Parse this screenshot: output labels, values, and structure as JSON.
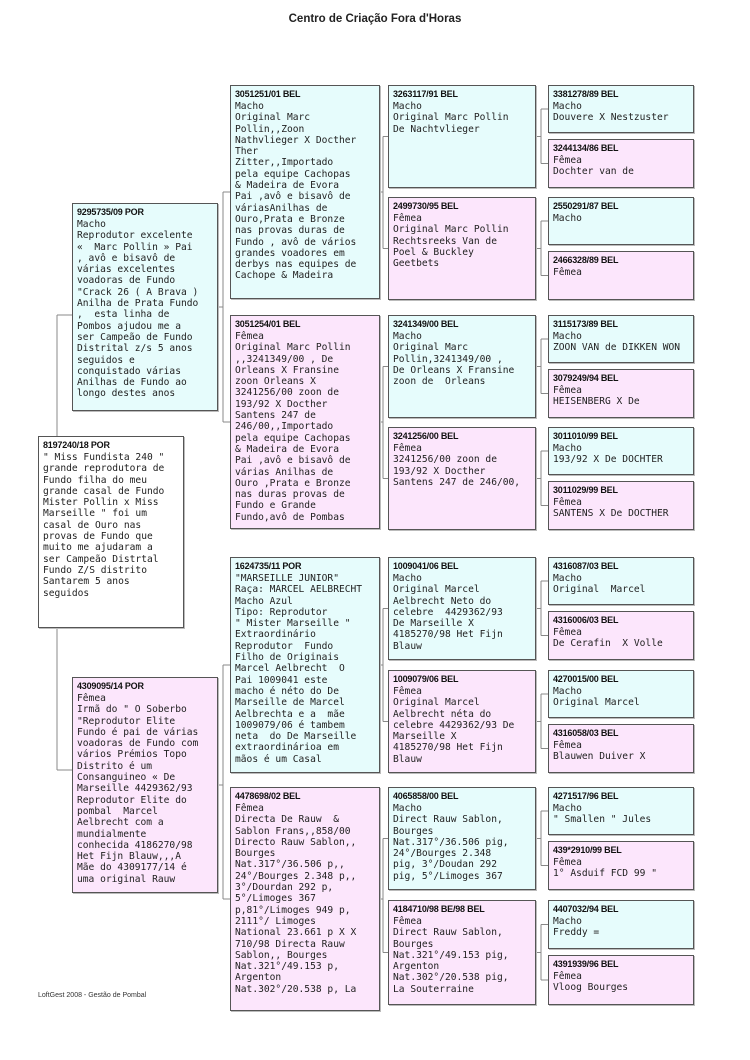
{
  "title": "Centro de Criação Fora d'Horas",
  "footer": "LoftGest 2008 - Gestão de Pombal",
  "colors": {
    "male": "#e6fcfc",
    "female": "#fce6fc",
    "border": "#555555"
  },
  "birds": [
    {
      "ring": "8197240/18 POR",
      "sex": "root",
      "text": "\" Miss Fundista 240 \"\ngrande reprodutora de\nFundo filha do meu\ngrande casal de Fundo\nMister Pollin x Miss\nMarseille \" foi um\ncasal de Ouro nas\nprovas de Fundo que\nmuito me ajudaram a\nser Campeão Distrtal\nFundo Z/S distrito\nSantarem 5 anos\nseguidos"
    },
    {
      "ring": "9295735/09 POR",
      "sex": "m",
      "text": "Macho\nReprodutor excelente\n«  Marc Pollin » Pai\n, avô e bisavô de\nvárias excelentes\nvoadoras de Fundo\n\"Crack 26 ( A Brava )\nAnilha de Prata Fundo\n,  esta linha de\nPombos ajudou me a\nser Campeão de Fundo\nDistrital z/s 5 anos\nseguidos e\nconquistado várias\nAnilhas de Fundo ao\nlongo destes anos"
    },
    {
      "ring": "4309095/14 POR",
      "sex": "f",
      "text": "Fêmea\nIrmã do \" O Soberbo\n\"Reprodutor Elite\nFundo é pai de várias\nvoadoras de Fundo com\nvários Prémios Topo\nDistrito é um\nConsanguineo « De\nMarseille 4429362/93\nReprodutor Elite do\npombal  Marcel\nAelbrecht com a\nmundialmente\nconhecida 4186270/98\nHet Fijn Blauw,,,A\nMãe do 4309177/14 é\numa original Rauw"
    },
    {
      "ring": "3051251/01 BEL",
      "sex": "m",
      "text": "Macho\nOriginal Marc\nPollin,,Zoon\nNathvlieger X Docther\nTher\nZitter,,Importado\npela equipe Cachopas\n& Madeira de Evora\nPai ,avô e bisavô de\nváriasAnilhas de\nOuro,Prata e Bronze\nnas provas duras de\nFundo , avô de vários\ngrandes voadores em\nderbys nas equipes de\nCachope & Madeira"
    },
    {
      "ring": "3051254/01 BEL",
      "sex": "f",
      "text": "Fêmea\nOriginal Marc Pollin\n,,3241349/00 , De\nOrleans X Fransine\nzoon Orleans X\n3241256/00 zoon de\n193/92 X Docther\nSantens 247 de\n246/00,,Importado\npela equipe Cachopas\n& Madeira de Evora\nPai ,avô e bisavô de\nvárias Anilhas de\nOuro ,Prata e Bronze\nnas duras provas de\nFundo e Grande\nFundo,avô de Pombas"
    },
    {
      "ring": "1624735/11 POR",
      "sex": "m",
      "text": "\"MARSEILLE JUNIOR\"\nRaça: MARCEL AELBRECHT\nMacho Azul\nTipo: Reprodutor\n\" Mister Marseille \"\nExtraordinário\nReprodutor  Fundo\nFilho de Originais\nMarcel Aelbrecht  O\nPai 1009041 este\nmacho é néto do De\nMarseille de Marcel\nAelbrechta e a  mãe\n1009079/06 é tambem\nneta  do De Marseille\nextraordinárioa em\nmãos é um Casal"
    },
    {
      "ring": "4478698/02 BEL",
      "sex": "f",
      "text": "Fêmea\nDirecta De Rauw  &\nSablon Frans,,858/00\nDirecto Rauw Sablon,,\nBourges\nNat.317°/36.506 p,,\n24°/Bourges 2.348 p,,\n3°/Dourdan 292 p,\n5°/Limoges 367\np,81°/Limoges 949 p,\n2111°/ Limoges\nNational 23.661 p X X\n710/98 Directa Rauw\nSablon,, Bourges\nNat.321°/49.153 p,\nArgenton\nNat.302°/20.538 p, La"
    },
    {
      "ring": "3263117/91 BEL",
      "sex": "m",
      "text": "Macho\nOriginal Marc Pollin\nDe Nachtvlieger"
    },
    {
      "ring": "2499730/95 BEL",
      "sex": "f",
      "text": "Fêmea\nOriginal Marc Pollin\nRechtsreeks Van de\nPoel & Buckley\nGeetbets"
    },
    {
      "ring": "3241349/00 BEL",
      "sex": "m",
      "text": "Macho\nOriginal Marc\nPollin,3241349/00 ,\nDe Orleans X Fransine\nzoon de  Orleans"
    },
    {
      "ring": "3241256/00 BEL",
      "sex": "f",
      "text": "Fêmea\n3241256/00 zoon de\n193/92 X Docther\nSantens 247 de 246/00,"
    },
    {
      "ring": "1009041/06 BEL",
      "sex": "m",
      "text": "Macho\nOriginal Marcel\nAelbrecht Neto do\ncelebre  4429362/93\nDe Marseille X\n4185270/98 Het Fijn\nBlauw"
    },
    {
      "ring": "1009079/06 BEL",
      "sex": "f",
      "text": "Fêmea\nOriginal Marcel\nAelbrecht néta do\ncelebre 4429362/93 De\nMarseille X\n4185270/98 Het Fijn\nBlauw"
    },
    {
      "ring": "4065858/00 BEL",
      "sex": "m",
      "text": "Macho\nDirect Rauw Sablon,\nBourges\nNat.317°/36.506 pig,\n24°/Bourges 2.348\npig, 3°/Doudan 292\npig, 5°/Limoges 367"
    },
    {
      "ring": "4184710/98 BE/98 BEL",
      "sex": "f",
      "text": "Fêmea\nDirect Rauw Sablon,\nBourges\nNat.321°/49.153 pig,\nArgenton\nNat.302°/20.538 pig,\nLa Souterraine"
    },
    {
      "ring": "3381278/89 BEL",
      "sex": "m",
      "text": "Macho\nDouvere X Nestzuster"
    },
    {
      "ring": "3244134/86 BEL",
      "sex": "f",
      "text": "Fêmea\nDochter van de"
    },
    {
      "ring": "2550291/87 BEL",
      "sex": "m",
      "text": "Macho"
    },
    {
      "ring": "2466328/89 BEL",
      "sex": "f",
      "text": "Fêmea"
    },
    {
      "ring": "3115173/89 BEL",
      "sex": "m",
      "text": "Macho\nZOON VAN de DIKKEN WON"
    },
    {
      "ring": "3079249/94 BEL",
      "sex": "f",
      "text": "Fêmea\nHEISENBERG X De"
    },
    {
      "ring": "3011010/99 BEL",
      "sex": "m",
      "text": "Macho\n193/92 X De DOCHTER"
    },
    {
      "ring": "3011029/99 BEL",
      "sex": "f",
      "text": "Fêmea\nSANTENS X De DOCTHER"
    },
    {
      "ring": "4316087/03 BEL",
      "sex": "m",
      "text": "Macho\nOriginal  Marcel"
    },
    {
      "ring": "4316006/03 BEL",
      "sex": "f",
      "text": "Fêmea\nDe Cerafin  X Volle"
    },
    {
      "ring": "4270015/00 BEL",
      "sex": "m",
      "text": "Macho\nOriginal Marcel"
    },
    {
      "ring": "4316058/03 BEL",
      "sex": "f",
      "text": "Fêmea\nBlauwen Duiver X"
    },
    {
      "ring": "4271517/96 BEL",
      "sex": "m",
      "text": "Macho\n\" Smallen \" Jules"
    },
    {
      "ring": "439*2910/99 BEL",
      "sex": "f",
      "text": "Fêmea\n1° Asduif FCD 99 \""
    },
    {
      "ring": "4407032/94 BEL",
      "sex": "m",
      "text": "Macho\nFreddy ="
    },
    {
      "ring": "4391939/96 BEL",
      "sex": "f",
      "text": "Fêmea\nVloog Bourges"
    }
  ]
}
